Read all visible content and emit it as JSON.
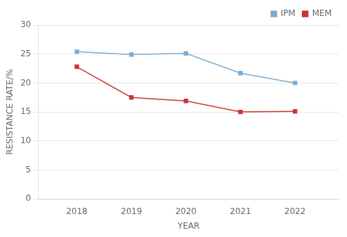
{
  "chart_data": {
    "type": "line",
    "x": [
      2018,
      2019,
      2020,
      2021,
      2022
    ],
    "series": [
      {
        "name": "IPM",
        "color": "#7aadd4",
        "marker": "square",
        "values": [
          25.4,
          24.9,
          25.1,
          21.7,
          20.0
        ]
      },
      {
        "name": "MEM",
        "color": "#cc3333",
        "marker": "square",
        "values": [
          22.8,
          17.5,
          16.9,
          15.0,
          15.1
        ]
      }
    ],
    "xlabel": "YEAR",
    "ylabel": "RESISTANCE RATE/%",
    "xlim": [
      2017.3,
      2022.8
    ],
    "xticks": [
      2018,
      2019,
      2020,
      2021,
      2022
    ],
    "ylim": [
      0,
      30
    ],
    "yticks": [
      0,
      5,
      10,
      15,
      20,
      25,
      30
    ],
    "grid": "y",
    "legend": "upper right"
  }
}
